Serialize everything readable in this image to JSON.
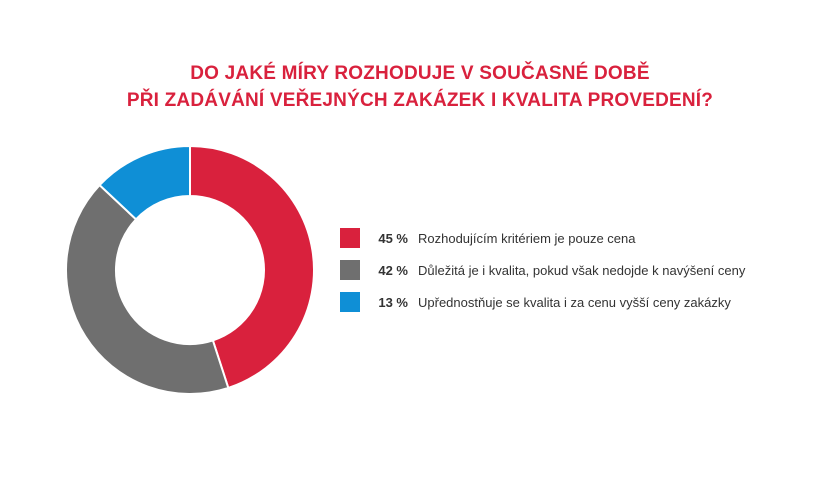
{
  "chart_data": {
    "type": "pie",
    "title_lines": [
      "DO JAKÉ MÍRY ROZHODUJE V SOUČASNÉ DOBĚ",
      "PŘI ZADÁVÁNÍ VEŘEJNÝCH ZAKÁZEK I KVALITA PROVEDENÍ?"
    ],
    "slices": [
      {
        "value": 45,
        "value_label": "45 %",
        "label": "Rozhodujícím kritériem je pouze cena",
        "color": "#d9213d"
      },
      {
        "value": 42,
        "value_label": "42 %",
        "label": "Důležitá je i kvalita, pokud však nedojde k navýšení ceny",
        "color": "#6f6f6f"
      },
      {
        "value": 13,
        "value_label": "13 %",
        "label": "Upřednostňuje se kvalita i za cenu vyšší ceny zakázky",
        "color": "#0f8fd6"
      }
    ],
    "legend_position": "right"
  }
}
